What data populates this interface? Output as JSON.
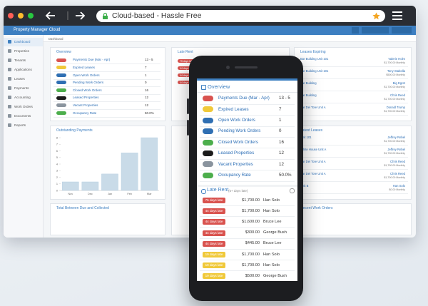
{
  "browser": {
    "address": "Cloud-based - Hassle Free"
  },
  "app": {
    "title": "Property Manager Cloud",
    "breadcrumb": "Dashboard",
    "sidebar": [
      "Dashboard",
      "Properties",
      "Tenants",
      "Applications",
      "Leases",
      "Payments",
      "Accounting",
      "Work Orders",
      "Documents",
      "Reports"
    ]
  },
  "overview": {
    "title": "Overview",
    "rows": [
      {
        "label": "Payments Due (Mar - Apr)",
        "value": "13 - 5",
        "color": "#d9534f"
      },
      {
        "label": "Expired Leases",
        "value": "7",
        "color": "#f0c93a"
      },
      {
        "label": "Open Work Orders",
        "value": "1",
        "color": "#2f6fb3"
      },
      {
        "label": "Pending Work Orders",
        "value": "0",
        "color": "#2f6fb3"
      },
      {
        "label": "Closed Work Orders",
        "value": "16",
        "color": "#4cae4c"
      },
      {
        "label": "Leased Properties",
        "value": "12",
        "color": "#1b1b1b"
      },
      {
        "label": "Vacant Properties",
        "value": "12",
        "color": "#8a949e"
      },
      {
        "label": "Occupancy Rate",
        "value": "50.0%",
        "color": "#4cae4c"
      }
    ]
  },
  "late_rent": {
    "title": "Late Rent",
    "subtitle": "(5+ days late)",
    "rows": [
      {
        "days": "75 days late",
        "amount": "$1,700.00",
        "tenant": "Han Solo",
        "color": "#d9534f"
      },
      {
        "days": "44 days late",
        "amount": "$1,700.00",
        "tenant": "Han Solo",
        "color": "#d9534f"
      },
      {
        "days": "44 days late",
        "amount": "$1,600.00",
        "tenant": "Bruce Lee",
        "color": "#d9534f"
      },
      {
        "days": "44 days late",
        "amount": "$300.00",
        "tenant": "George Bush",
        "color": "#d9534f"
      },
      {
        "days": "44 days late",
        "amount": "$445.00",
        "tenant": "Bruce Lee",
        "color": "#d9534f"
      },
      {
        "days": "19 days late",
        "amount": "$1,700.00",
        "tenant": "Han Solo",
        "color": "#f0c93a"
      },
      {
        "days": "19 days late",
        "amount": "$1,700.00",
        "tenant": "Han Solo",
        "color": "#f0c93a"
      },
      {
        "days": "19 days late",
        "amount": "$500.00",
        "tenant": "George Bush",
        "color": "#f0c93a"
      }
    ]
  },
  "chart_data": {
    "type": "bar",
    "title": "Outstanding Payments",
    "categories": [
      "Nov",
      "Dec",
      "Jan",
      "Feb",
      "Mar"
    ],
    "values": [
      1.3,
      1.3,
      2.5,
      5.7,
      8
    ],
    "color": "#c9dbe8",
    "ylim": [
      0,
      8
    ],
    "yticks": [
      0,
      1,
      2,
      3,
      4,
      5,
      6,
      7,
      8
    ],
    "grid": false
  },
  "leases_expiring": {
    "title": "Leases Expiring",
    "rows": [
      {
        "unit": "Bar Building Unit 101",
        "tenant": "Valerie Holm",
        "rent": "$1,700.00 Monthly"
      },
      {
        "unit": "Bar Building Unit 101",
        "tenant": "Tony Stabolla",
        "rent": "$500.00 Monthly"
      },
      {
        "unit": "Bar Building",
        "tenant": "Big Egret",
        "rent": "$1,700.00 Monthly"
      },
      {
        "unit": "Bar Building",
        "tenant": "Chris Reed",
        "rent": "$1,700.00 Monthly"
      },
      {
        "unit": "Bar Del Tore Unit A",
        "tenant": "Donald Trump",
        "rent": "$1,700.00 Monthly"
      }
    ]
  },
  "latest_leases": {
    "title": "Latest Leases",
    "rows": [
      {
        "unit": "Unit 101",
        "tenant": "Jeffrey Rebel",
        "rent": "$1,700.00 Monthly"
      },
      {
        "unit": "White House Unit A",
        "tenant": "Jeffrey Rebel",
        "rent": "$1,700.00 Monthly"
      },
      {
        "unit": "Bar Del Tore Unit A",
        "tenant": "Chris Reed",
        "rent": "$1,700.00 Monthly"
      },
      {
        "unit": "Bar Del Tore Unit A",
        "tenant": "Chris Reed",
        "rent": "$1,700.00 Monthly"
      },
      {
        "unit": "Unit B",
        "tenant": "Han Solo",
        "rent": "$0.00 Monthly"
      }
    ]
  },
  "recent_work_orders": {
    "title": "Recent Work Orders"
  },
  "due_collected": {
    "title": "Total Between Due and Collected"
  }
}
